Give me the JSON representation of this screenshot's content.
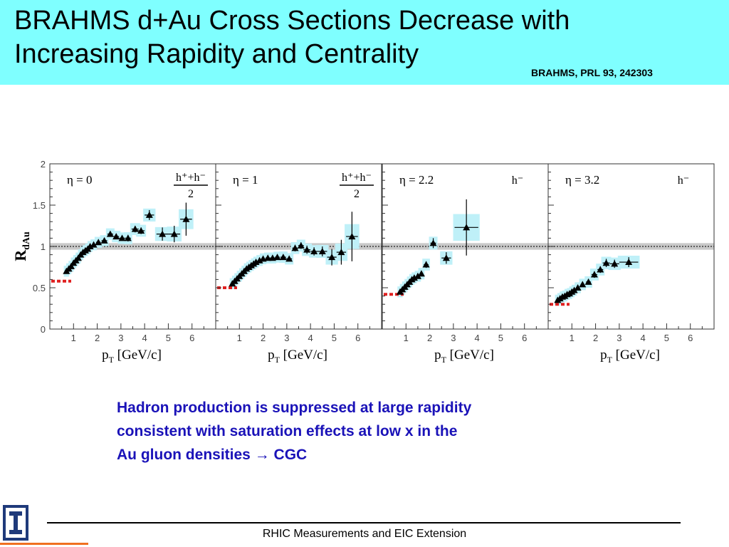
{
  "header": {
    "title_line1": "BRAHMS d+Au Cross Sections Decrease with",
    "title_line2": "Increasing Rapidity and Centrality",
    "citation": "BRAHMS, PRL 93, 242303"
  },
  "caption": {
    "line1": "Hadron production is suppressed at large rapidity",
    "line2": "consistent with saturation effects at low x in the",
    "line3": "Au gluon densities",
    "arrow": "→",
    "line3_end": "CGC"
  },
  "footer": {
    "text": "RHIC Measurements and EIC Extension"
  },
  "colors": {
    "title_bg": "#7fffff",
    "caption_text": "#1a12b8",
    "error_band": "#bff0f8",
    "norm_ref": "#e02020",
    "logo_blue": "#1f3a7a",
    "logo_orange": "#f07020"
  },
  "icons": {
    "logo": "illinois-block-i-logo"
  },
  "chart_data": {
    "type": "scatter",
    "ylabel_main": "R",
    "ylabel_sub": "dAu",
    "ylim": [
      0,
      2
    ],
    "yticks": [
      "0",
      "0.5",
      "1",
      "1.5",
      "2"
    ],
    "xlim": [
      0,
      7
    ],
    "xticks": [
      "1",
      "2",
      "3",
      "4",
      "5",
      "6"
    ],
    "reference_line": 1.0,
    "reference_band": [
      0.96,
      1.04
    ],
    "panels": [
      {
        "eta_label": "η = 0",
        "particle_num": "h⁺+h⁻",
        "particle_den": "2",
        "xlabel": "p_T [GeV/c]",
        "norm_value": 0.58,
        "points": [
          {
            "x": 0.7,
            "y": 0.7,
            "ex": 0.05,
            "ey": 0.02
          },
          {
            "x": 0.8,
            "y": 0.73,
            "ex": 0.05,
            "ey": 0.02
          },
          {
            "x": 0.9,
            "y": 0.76,
            "ex": 0.05,
            "ey": 0.02
          },
          {
            "x": 1.0,
            "y": 0.8,
            "ex": 0.05,
            "ey": 0.02
          },
          {
            "x": 1.1,
            "y": 0.83,
            "ex": 0.05,
            "ey": 0.02
          },
          {
            "x": 1.2,
            "y": 0.86,
            "ex": 0.05,
            "ey": 0.02
          },
          {
            "x": 1.3,
            "y": 0.9,
            "ex": 0.05,
            "ey": 0.02
          },
          {
            "x": 1.4,
            "y": 0.93,
            "ex": 0.05,
            "ey": 0.02
          },
          {
            "x": 1.5,
            "y": 0.95,
            "ex": 0.05,
            "ey": 0.02
          },
          {
            "x": 1.6,
            "y": 0.97,
            "ex": 0.05,
            "ey": 0.02
          },
          {
            "x": 1.7,
            "y": 1.0,
            "ex": 0.05,
            "ey": 0.02
          },
          {
            "x": 1.85,
            "y": 1.02,
            "ex": 0.07,
            "ey": 0.02
          },
          {
            "x": 2.05,
            "y": 1.05,
            "ex": 0.1,
            "ey": 0.02
          },
          {
            "x": 2.3,
            "y": 1.07,
            "ex": 0.12,
            "ey": 0.02
          },
          {
            "x": 2.55,
            "y": 1.15,
            "ex": 0.12,
            "ey": 0.03
          },
          {
            "x": 2.8,
            "y": 1.12,
            "ex": 0.12,
            "ey": 0.03
          },
          {
            "x": 3.05,
            "y": 1.1,
            "ex": 0.12,
            "ey": 0.03
          },
          {
            "x": 3.3,
            "y": 1.1,
            "ex": 0.12,
            "ey": 0.04
          },
          {
            "x": 3.6,
            "y": 1.21,
            "ex": 0.15,
            "ey": 0.04
          },
          {
            "x": 3.85,
            "y": 1.19,
            "ex": 0.15,
            "ey": 0.04
          },
          {
            "x": 4.2,
            "y": 1.38,
            "ex": 0.2,
            "ey": 0.06
          },
          {
            "x": 4.75,
            "y": 1.15,
            "ex": 0.25,
            "ey": 0.08
          },
          {
            "x": 5.25,
            "y": 1.15,
            "ex": 0.25,
            "ey": 0.1
          },
          {
            "x": 5.75,
            "y": 1.33,
            "ex": 0.25,
            "ey": 0.2
          }
        ]
      },
      {
        "eta_label": "η = 1",
        "particle_num": "h⁺+h⁻",
        "particle_den": "2",
        "xlabel": "p_T [GeV/c]",
        "norm_value": 0.5,
        "points": [
          {
            "x": 0.7,
            "y": 0.55,
            "ex": 0.05,
            "ey": 0.02
          },
          {
            "x": 0.8,
            "y": 0.58,
            "ex": 0.05,
            "ey": 0.02
          },
          {
            "x": 0.9,
            "y": 0.61,
            "ex": 0.05,
            "ey": 0.02
          },
          {
            "x": 1.0,
            "y": 0.64,
            "ex": 0.05,
            "ey": 0.02
          },
          {
            "x": 1.1,
            "y": 0.67,
            "ex": 0.05,
            "ey": 0.02
          },
          {
            "x": 1.2,
            "y": 0.7,
            "ex": 0.05,
            "ey": 0.02
          },
          {
            "x": 1.3,
            "y": 0.73,
            "ex": 0.05,
            "ey": 0.02
          },
          {
            "x": 1.4,
            "y": 0.75,
            "ex": 0.05,
            "ey": 0.02
          },
          {
            "x": 1.5,
            "y": 0.77,
            "ex": 0.05,
            "ey": 0.02
          },
          {
            "x": 1.6,
            "y": 0.79,
            "ex": 0.05,
            "ey": 0.02
          },
          {
            "x": 1.7,
            "y": 0.81,
            "ex": 0.05,
            "ey": 0.02
          },
          {
            "x": 1.85,
            "y": 0.83,
            "ex": 0.07,
            "ey": 0.02
          },
          {
            "x": 2.0,
            "y": 0.85,
            "ex": 0.08,
            "ey": 0.02
          },
          {
            "x": 2.2,
            "y": 0.86,
            "ex": 0.1,
            "ey": 0.02
          },
          {
            "x": 2.4,
            "y": 0.86,
            "ex": 0.1,
            "ey": 0.02
          },
          {
            "x": 2.6,
            "y": 0.87,
            "ex": 0.1,
            "ey": 0.02
          },
          {
            "x": 2.85,
            "y": 0.87,
            "ex": 0.12,
            "ey": 0.03
          },
          {
            "x": 3.1,
            "y": 0.85,
            "ex": 0.12,
            "ey": 0.03
          },
          {
            "x": 3.35,
            "y": 0.98,
            "ex": 0.12,
            "ey": 0.04
          },
          {
            "x": 3.6,
            "y": 1.01,
            "ex": 0.12,
            "ey": 0.04
          },
          {
            "x": 3.85,
            "y": 0.96,
            "ex": 0.15,
            "ey": 0.05
          },
          {
            "x": 4.15,
            "y": 0.94,
            "ex": 0.15,
            "ey": 0.05
          },
          {
            "x": 4.5,
            "y": 0.94,
            "ex": 0.2,
            "ey": 0.06
          },
          {
            "x": 4.9,
            "y": 0.87,
            "ex": 0.2,
            "ey": 0.1
          },
          {
            "x": 5.3,
            "y": 0.93,
            "ex": 0.2,
            "ey": 0.15
          },
          {
            "x": 5.75,
            "y": 1.12,
            "ex": 0.25,
            "ey": 0.3
          }
        ]
      },
      {
        "eta_label": "η = 2.2",
        "particle_num": "h⁻",
        "particle_den": "",
        "xlabel": "p_T [GeV/c]",
        "norm_value": 0.42,
        "points": [
          {
            "x": 0.75,
            "y": 0.45,
            "ex": 0.05,
            "ey": 0.02
          },
          {
            "x": 0.85,
            "y": 0.48,
            "ex": 0.05,
            "ey": 0.02
          },
          {
            "x": 0.95,
            "y": 0.51,
            "ex": 0.05,
            "ey": 0.02
          },
          {
            "x": 1.05,
            "y": 0.54,
            "ex": 0.05,
            "ey": 0.02
          },
          {
            "x": 1.15,
            "y": 0.57,
            "ex": 0.05,
            "ey": 0.02
          },
          {
            "x": 1.25,
            "y": 0.6,
            "ex": 0.05,
            "ey": 0.02
          },
          {
            "x": 1.35,
            "y": 0.62,
            "ex": 0.05,
            "ey": 0.02
          },
          {
            "x": 1.5,
            "y": 0.64,
            "ex": 0.07,
            "ey": 0.02
          },
          {
            "x": 1.65,
            "y": 0.67,
            "ex": 0.07,
            "ey": 0.03
          },
          {
            "x": 1.85,
            "y": 0.78,
            "ex": 0.1,
            "ey": 0.04
          },
          {
            "x": 2.15,
            "y": 1.04,
            "ex": 0.12,
            "ey": 0.06
          },
          {
            "x": 2.7,
            "y": 0.86,
            "ex": 0.2,
            "ey": 0.07
          },
          {
            "x": 3.55,
            "y": 1.23,
            "ex": 0.5,
            "ey": 0.34
          }
        ]
      },
      {
        "eta_label": "η = 3.2",
        "particle_num": "h⁻",
        "particle_den": "",
        "xlabel": "p_T [GeV/c]",
        "norm_value": 0.3,
        "points": [
          {
            "x": 0.4,
            "y": 0.35,
            "ex": 0.05,
            "ey": 0.02
          },
          {
            "x": 0.5,
            "y": 0.37,
            "ex": 0.05,
            "ey": 0.02
          },
          {
            "x": 0.6,
            "y": 0.39,
            "ex": 0.05,
            "ey": 0.02
          },
          {
            "x": 0.7,
            "y": 0.4,
            "ex": 0.05,
            "ey": 0.02
          },
          {
            "x": 0.8,
            "y": 0.42,
            "ex": 0.05,
            "ey": 0.02
          },
          {
            "x": 0.9,
            "y": 0.43,
            "ex": 0.05,
            "ey": 0.02
          },
          {
            "x": 1.0,
            "y": 0.45,
            "ex": 0.05,
            "ey": 0.02
          },
          {
            "x": 1.1,
            "y": 0.47,
            "ex": 0.05,
            "ey": 0.02
          },
          {
            "x": 1.25,
            "y": 0.5,
            "ex": 0.07,
            "ey": 0.02
          },
          {
            "x": 1.45,
            "y": 0.54,
            "ex": 0.08,
            "ey": 0.03
          },
          {
            "x": 1.7,
            "y": 0.57,
            "ex": 0.1,
            "ey": 0.03
          },
          {
            "x": 1.95,
            "y": 0.66,
            "ex": 0.12,
            "ey": 0.04
          },
          {
            "x": 2.2,
            "y": 0.72,
            "ex": 0.12,
            "ey": 0.04
          },
          {
            "x": 2.45,
            "y": 0.8,
            "ex": 0.15,
            "ey": 0.05
          },
          {
            "x": 2.8,
            "y": 0.79,
            "ex": 0.2,
            "ey": 0.05
          },
          {
            "x": 3.4,
            "y": 0.81,
            "ex": 0.4,
            "ey": 0.06
          }
        ]
      }
    ]
  }
}
